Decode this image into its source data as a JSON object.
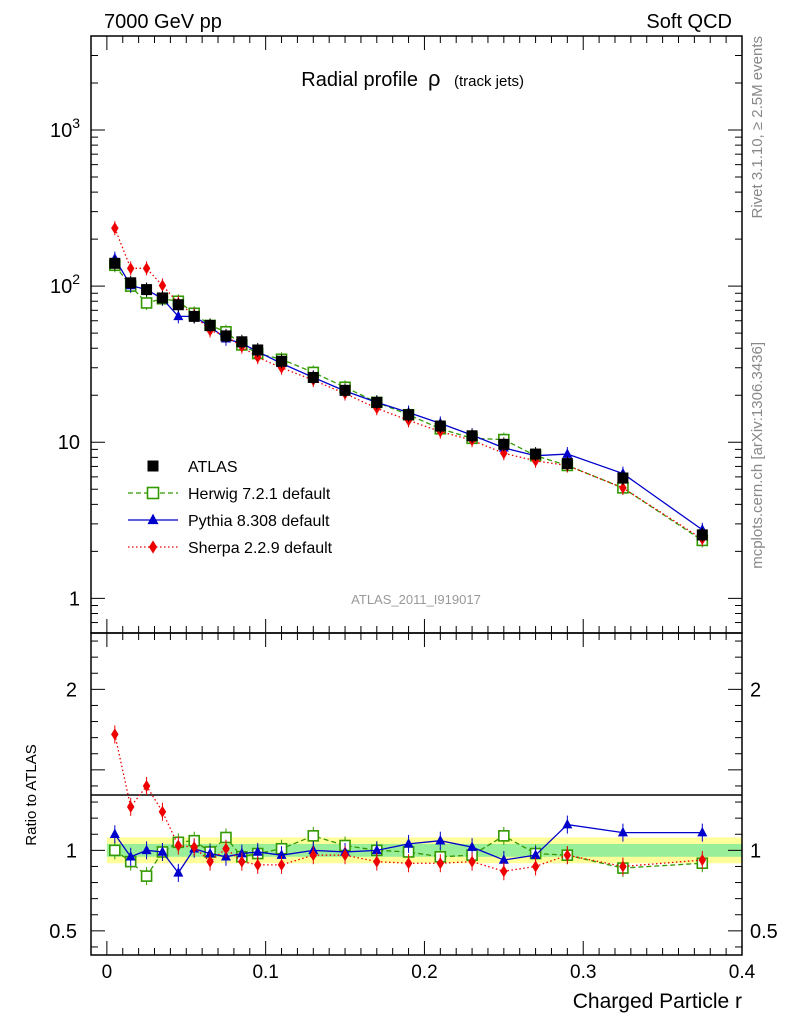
{
  "header": {
    "left": "7000 GeV pp",
    "right": "Soft QCD"
  },
  "side_labels": {
    "rivet": "Rivet 3.1.10, ≥ 2.5M events",
    "mcplots": "mcplots.cern.ch [arXiv:1306.3436]"
  },
  "chart_data": [
    {
      "type": "scatter",
      "title_main": "Radial profile",
      "title_symbol": "ρ",
      "title_sub": "(track jets)",
      "watermark": "ATLAS_2011_I919017",
      "xlabel": "Charged Particle r",
      "ylabel": "",
      "yscale": "log",
      "xlim": [
        -0.01,
        0.4
      ],
      "ylim": [
        0.6,
        4000
      ],
      "y_ticks": [
        {
          "value": 1000,
          "label": "10",
          "exp": "3"
        },
        {
          "value": 100,
          "label": "10",
          "exp": "2"
        },
        {
          "value": 10,
          "label": "10",
          "exp": ""
        },
        {
          "value": 1,
          "label": "1",
          "exp": ""
        }
      ],
      "legend_position": "bottom-left",
      "x": [
        0.005,
        0.015,
        0.025,
        0.035,
        0.045,
        0.055,
        0.065,
        0.075,
        0.085,
        0.095,
        0.11,
        0.13,
        0.15,
        0.17,
        0.19,
        0.21,
        0.23,
        0.25,
        0.27,
        0.29,
        0.325,
        0.375
      ],
      "series": [
        {
          "name": "ATLAS",
          "color": "#000000",
          "marker": "square-filled",
          "values": [
            140,
            105,
            95,
            84,
            76,
            64,
            56,
            48,
            44,
            39,
            33,
            26,
            21.5,
            18,
            15,
            12.7,
            11,
            9.7,
            8.4,
            7.3,
            5.9,
            2.55
          ]
        },
        {
          "name": "Herwig 7.2.1 default",
          "color": "#339900",
          "marker": "square-open",
          "dash": "5,3",
          "values": [
            136,
            100,
            78,
            83,
            80,
            67,
            56,
            51,
            42,
            37,
            34,
            28,
            22.5,
            18,
            15,
            12.2,
            10.6,
            10.4,
            8.2,
            7.1,
            5.1,
            2.35
          ]
        },
        {
          "name": "Pythia 8.308 default",
          "color": "#0000cc",
          "marker": "triangle",
          "dash": "",
          "values": [
            150,
            101,
            95,
            83,
            64,
            64,
            55,
            46,
            43,
            38,
            32,
            26,
            21.3,
            18,
            15.5,
            13.2,
            11.1,
            9.2,
            8.2,
            8.4,
            6.3,
            2.75
          ]
        },
        {
          "name": "Sherpa 2.2.9 default",
          "color": "#ee0000",
          "marker": "diamond",
          "dash": "1.5,2.5",
          "values": [
            235,
            130,
            130,
            101,
            78,
            65,
            52,
            48,
            41,
            35,
            30,
            25,
            20.5,
            16.5,
            13.8,
            11.7,
            10.3,
            8.5,
            7.6,
            7.1,
            5.1,
            2.4
          ]
        }
      ]
    },
    {
      "type": "scatter",
      "ylabel": "Ratio to ATLAS",
      "xlabel": "Charged Particle r",
      "xlim": [
        -0.01,
        0.4
      ],
      "ylim": [
        0.35,
        2.35
      ],
      "y_ticks": [
        {
          "value": 2,
          "label": "2"
        },
        {
          "value": 1,
          "label": "1"
        },
        {
          "value": 0.5,
          "label": "0.5"
        }
      ],
      "x_ticks": [
        {
          "value": 0,
          "label": "0"
        },
        {
          "value": 0.1,
          "label": "0.1"
        },
        {
          "value": 0.2,
          "label": "0.2"
        },
        {
          "value": 0.3,
          "label": "0.3"
        },
        {
          "value": 0.4,
          "label": "0.4"
        }
      ],
      "x": [
        0.005,
        0.015,
        0.025,
        0.035,
        0.045,
        0.055,
        0.065,
        0.075,
        0.085,
        0.095,
        0.11,
        0.13,
        0.15,
        0.17,
        0.19,
        0.21,
        0.23,
        0.25,
        0.27,
        0.29,
        0.325,
        0.375
      ],
      "band": {
        "green_halfwidth": 0.04,
        "yellow_halfwidth": 0.08
      },
      "series": [
        {
          "name": "Herwig 7.2.1 default",
          "color": "#339900",
          "marker": "square-open",
          "dash": "5,3",
          "values": [
            1.0,
            0.93,
            0.84,
            0.99,
            1.05,
            1.06,
            0.99,
            1.08,
            0.96,
            0.98,
            1.01,
            1.09,
            1.03,
            1.0,
            0.99,
            0.96,
            0.97,
            1.09,
            0.98,
            0.97,
            0.89,
            0.92
          ]
        },
        {
          "name": "Pythia 8.308 default",
          "color": "#0000cc",
          "marker": "triangle",
          "dash": "",
          "values": [
            1.1,
            0.96,
            1.0,
            0.99,
            0.86,
            1.01,
            0.98,
            0.96,
            0.98,
            0.99,
            0.97,
            1.0,
            0.99,
            1.0,
            1.04,
            1.06,
            1.02,
            0.94,
            0.97,
            1.16,
            1.11,
            1.11
          ]
        },
        {
          "name": "Sherpa 2.2.9 default",
          "color": "#ee0000",
          "marker": "diamond",
          "dash": "1.5,2.5",
          "values": [
            1.72,
            1.27,
            1.4,
            1.24,
            1.03,
            1.02,
            0.93,
            1.01,
            0.93,
            0.91,
            0.91,
            0.97,
            0.97,
            0.93,
            0.92,
            0.92,
            0.93,
            0.87,
            0.9,
            0.97,
            0.9,
            0.94
          ]
        }
      ]
    }
  ]
}
